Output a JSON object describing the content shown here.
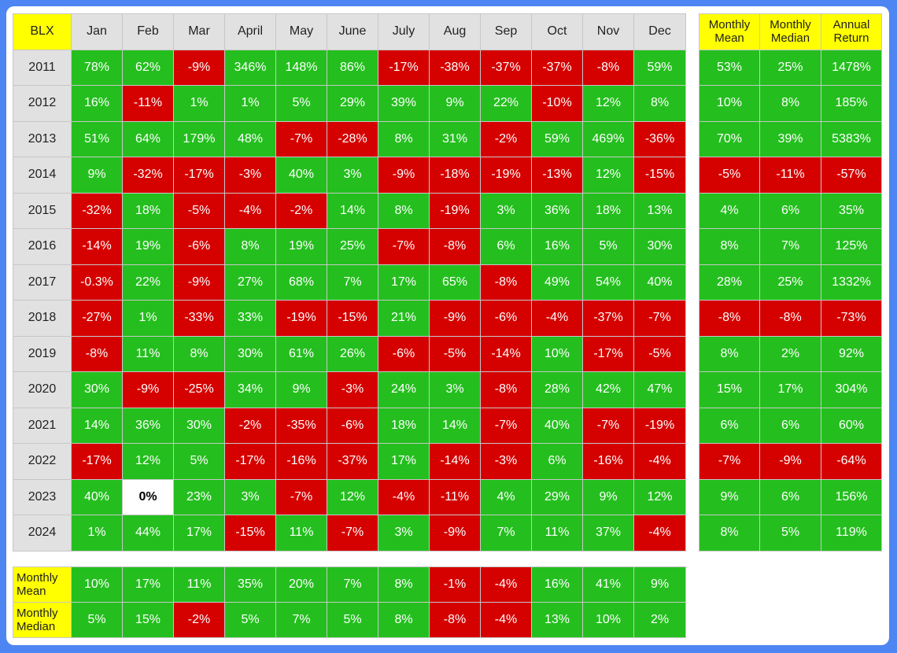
{
  "chart_data": {
    "type": "table",
    "title": "BLX",
    "months": [
      "Jan",
      "Feb",
      "Mar",
      "April",
      "May",
      "June",
      "July",
      "Aug",
      "Sep",
      "Oct",
      "Nov",
      "Dec"
    ],
    "rows": [
      {
        "year": "2011",
        "values": [
          "78%",
          "62%",
          "-9%",
          "346%",
          "148%",
          "86%",
          "-17%",
          "-38%",
          "-37%",
          "-37%",
          "-8%",
          "59%"
        ],
        "stats": [
          "53%",
          "25%",
          "1478%"
        ]
      },
      {
        "year": "2012",
        "values": [
          "16%",
          "-11%",
          "1%",
          "1%",
          "5%",
          "29%",
          "39%",
          "9%",
          "22%",
          "-10%",
          "12%",
          "8%"
        ],
        "stats": [
          "10%",
          "8%",
          "185%"
        ]
      },
      {
        "year": "2013",
        "values": [
          "51%",
          "64%",
          "179%",
          "48%",
          "-7%",
          "-28%",
          "8%",
          "31%",
          "-2%",
          "59%",
          "469%",
          "-36%"
        ],
        "stats": [
          "70%",
          "39%",
          "5383%"
        ]
      },
      {
        "year": "2014",
        "values": [
          "9%",
          "-32%",
          "-17%",
          "-3%",
          "40%",
          "3%",
          "-9%",
          "-18%",
          "-19%",
          "-13%",
          "12%",
          "-15%"
        ],
        "stats": [
          "-5%",
          "-11%",
          "-57%"
        ]
      },
      {
        "year": "2015",
        "values": [
          "-32%",
          "18%",
          "-5%",
          "-4%",
          "-2%",
          "14%",
          "8%",
          "-19%",
          "3%",
          "36%",
          "18%",
          "13%"
        ],
        "stats": [
          "4%",
          "6%",
          "35%"
        ]
      },
      {
        "year": "2016",
        "values": [
          "-14%",
          "19%",
          "-6%",
          "8%",
          "19%",
          "25%",
          "-7%",
          "-8%",
          "6%",
          "16%",
          "5%",
          "30%"
        ],
        "stats": [
          "8%",
          "7%",
          "125%"
        ]
      },
      {
        "year": "2017",
        "values": [
          "-0.3%",
          "22%",
          "-9%",
          "27%",
          "68%",
          "7%",
          "17%",
          "65%",
          "-8%",
          "49%",
          "54%",
          "40%"
        ],
        "stats": [
          "28%",
          "25%",
          "1332%"
        ]
      },
      {
        "year": "2018",
        "values": [
          "-27%",
          "1%",
          "-33%",
          "33%",
          "-19%",
          "-15%",
          "21%",
          "-9%",
          "-6%",
          "-4%",
          "-37%",
          "-7%"
        ],
        "stats": [
          "-8%",
          "-8%",
          "-73%"
        ]
      },
      {
        "year": "2019",
        "values": [
          "-8%",
          "11%",
          "8%",
          "30%",
          "61%",
          "26%",
          "-6%",
          "-5%",
          "-14%",
          "10%",
          "-17%",
          "-5%"
        ],
        "stats": [
          "8%",
          "2%",
          "92%"
        ]
      },
      {
        "year": "2020",
        "values": [
          "30%",
          "-9%",
          "-25%",
          "34%",
          "9%",
          "-3%",
          "24%",
          "3%",
          "-8%",
          "28%",
          "42%",
          "47%"
        ],
        "stats": [
          "15%",
          "17%",
          "304%"
        ]
      },
      {
        "year": "2021",
        "values": [
          "14%",
          "36%",
          "30%",
          "-2%",
          "-35%",
          "-6%",
          "18%",
          "14%",
          "-7%",
          "40%",
          "-7%",
          "-19%"
        ],
        "stats": [
          "6%",
          "6%",
          "60%"
        ]
      },
      {
        "year": "2022",
        "values": [
          "-17%",
          "12%",
          "5%",
          "-17%",
          "-16%",
          "-37%",
          "17%",
          "-14%",
          "-3%",
          "6%",
          "-16%",
          "-4%"
        ],
        "stats": [
          "-7%",
          "-9%",
          "-64%"
        ]
      },
      {
        "year": "2023",
        "values": [
          "40%",
          "0%",
          "23%",
          "3%",
          "-7%",
          "12%",
          "-4%",
          "-11%",
          "4%",
          "29%",
          "9%",
          "12%"
        ],
        "stats": [
          "9%",
          "6%",
          "156%"
        ]
      },
      {
        "year": "2024",
        "values": [
          "1%",
          "44%",
          "17%",
          "-15%",
          "11%",
          "-7%",
          "3%",
          "-9%",
          "7%",
          "11%",
          "37%",
          "-4%"
        ],
        "stats": [
          "8%",
          "5%",
          "119%"
        ]
      }
    ],
    "summary_headers": [
      [
        "Monthly",
        "Mean"
      ],
      [
        "Monthly",
        "Median"
      ],
      [
        "Annual",
        "Return"
      ]
    ],
    "footer_rows": [
      {
        "label": [
          "Monthly",
          "Mean"
        ],
        "values": [
          "10%",
          "17%",
          "11%",
          "35%",
          "20%",
          "7%",
          "8%",
          "-1%",
          "-4%",
          "16%",
          "41%",
          "9%"
        ]
      },
      {
        "label": [
          "Monthly",
          "Median"
        ],
        "values": [
          "5%",
          "15%",
          "-2%",
          "5%",
          "7%",
          "5%",
          "8%",
          "-8%",
          "-4%",
          "13%",
          "10%",
          "2%"
        ]
      }
    ],
    "colors": {
      "positive": "#24bf1e",
      "negative": "#d50000",
      "zero": "#ffffff",
      "header": "#e1e1e1",
      "highlight": "#ffff00",
      "frame": "#4d86f2"
    }
  }
}
